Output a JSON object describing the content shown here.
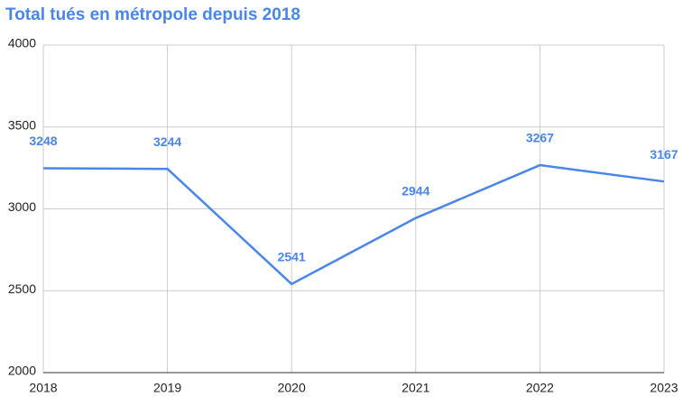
{
  "chart_data": {
    "type": "line",
    "title": "Total tués en métropole depuis 2018",
    "x": [
      2018,
      2019,
      2020,
      2021,
      2022,
      2023
    ],
    "values": [
      3248,
      3244,
      2541,
      2944,
      3267,
      3167
    ],
    "color": "#4a86e8",
    "xlim": [
      2018,
      2023
    ],
    "xticks": [
      2018,
      2019,
      2020,
      2021,
      2022,
      2023
    ],
    "ylim": [
      2000,
      4000
    ],
    "yticks": [
      2000,
      2500,
      3000,
      3500,
      4000
    ],
    "grid": true
  }
}
